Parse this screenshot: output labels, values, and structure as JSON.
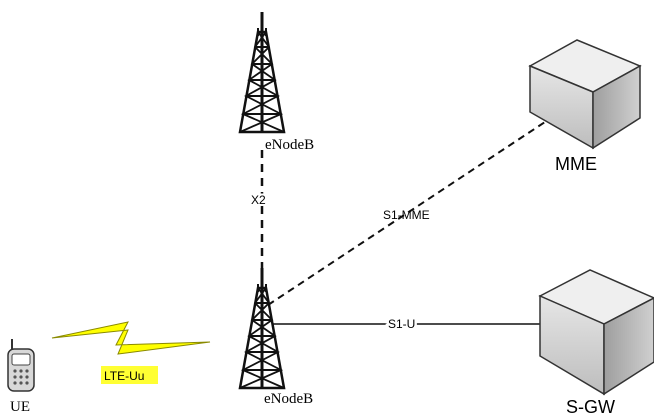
{
  "nodes": {
    "enodeb_top": {
      "label": "eNodeB"
    },
    "enodeb_bottom": {
      "label": "eNodeB"
    },
    "mme": {
      "label": "MME"
    },
    "sgw": {
      "label": "S-GW"
    },
    "ue": {
      "label": "UE"
    }
  },
  "links": {
    "x2": {
      "label": "X2"
    },
    "s1_mme": {
      "label": "S1-MME"
    },
    "s1_u": {
      "label": "S1-U"
    },
    "lte_uu": {
      "label": "LTE-Uu",
      "highlight": "#ffff33"
    }
  },
  "colors": {
    "tower": "#111111",
    "box_front": "#d9d9d9",
    "box_top": "#eeeeee",
    "box_side": "#b9b9b9",
    "lightning": "#ffff00"
  }
}
